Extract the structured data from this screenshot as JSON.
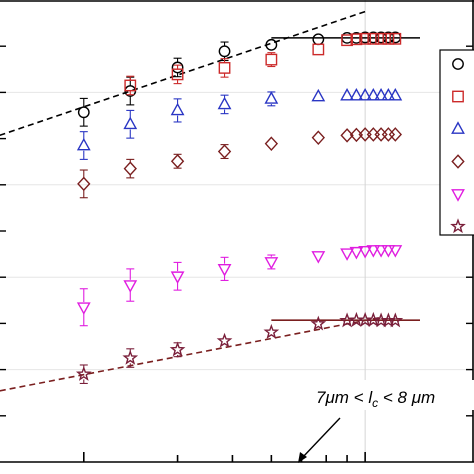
{
  "chart_data": {
    "type": "scatter",
    "title": "",
    "xlabel": "",
    "ylabel": "",
    "x_scale": "log",
    "xlim": [
      0.5,
      12.0
    ],
    "ylim": [
      0.0,
      1.0
    ],
    "grid": true,
    "legend": {
      "position": "top-right",
      "entries_visible": 5
    },
    "annotation": {
      "prefix": "7",
      "unit_mu": "μ",
      "unit_m": "m < ",
      "var_l": "l",
      "var_c": "c",
      "suffix": " < 8 ",
      "unit2": "μm"
    },
    "series": [
      {
        "marker": "circle",
        "color": "#000000",
        "points": [
          {
            "x": 1.0,
            "y": 0.757,
            "err": 0.03
          },
          {
            "x": 1.41,
            "y": 0.803,
            "err": 0.03
          },
          {
            "x": 2.0,
            "y": 0.854,
            "err": 0.02
          },
          {
            "x": 2.83,
            "y": 0.889,
            "err": 0.02
          },
          {
            "x": 4.0,
            "y": 0.903,
            "err": 0.01
          },
          {
            "x": 5.66,
            "y": 0.915,
            "err": 0.01
          },
          {
            "x": 7.0,
            "y": 0.918,
            "err": 0.005
          },
          {
            "x": 7.5,
            "y": 0.918,
            "err": 0.005
          },
          {
            "x": 8.0,
            "y": 0.919,
            "err": 0.005
          },
          {
            "x": 8.5,
            "y": 0.919,
            "err": 0.005
          },
          {
            "x": 9.0,
            "y": 0.919,
            "err": 0.005
          },
          {
            "x": 9.5,
            "y": 0.919,
            "err": 0.005
          },
          {
            "x": 10.0,
            "y": 0.919,
            "err": 0.005
          }
        ]
      },
      {
        "marker": "square",
        "color": "#cc2a2a",
        "points": [
          {
            "x": 1.41,
            "y": 0.815,
            "err": 0.02
          },
          {
            "x": 2.0,
            "y": 0.839,
            "err": 0.02
          },
          {
            "x": 2.83,
            "y": 0.853,
            "err": 0.02
          },
          {
            "x": 4.0,
            "y": 0.871,
            "err": 0.015
          },
          {
            "x": 5.66,
            "y": 0.893,
            "err": 0.01
          },
          {
            "x": 7.0,
            "y": 0.913,
            "err": 0.005
          },
          {
            "x": 7.5,
            "y": 0.915,
            "err": 0.005
          },
          {
            "x": 8.0,
            "y": 0.916,
            "err": 0.005
          },
          {
            "x": 8.5,
            "y": 0.916,
            "err": 0.005
          },
          {
            "x": 9.0,
            "y": 0.916,
            "err": 0.005
          },
          {
            "x": 9.5,
            "y": 0.916,
            "err": 0.005
          },
          {
            "x": 10.0,
            "y": 0.916,
            "err": 0.005
          }
        ]
      },
      {
        "marker": "triangle-up",
        "color": "#2a36c4",
        "points": [
          {
            "x": 1.0,
            "y": 0.685,
            "err": 0.03
          },
          {
            "x": 1.41,
            "y": 0.731,
            "err": 0.03
          },
          {
            "x": 2.0,
            "y": 0.761,
            "err": 0.025
          },
          {
            "x": 2.83,
            "y": 0.774,
            "err": 0.02
          },
          {
            "x": 4.0,
            "y": 0.786,
            "err": 0.015
          },
          {
            "x": 5.66,
            "y": 0.791,
            "err": 0.01
          },
          {
            "x": 7.0,
            "y": 0.793,
            "err": 0.005
          },
          {
            "x": 7.5,
            "y": 0.793,
            "err": 0.005
          },
          {
            "x": 8.0,
            "y": 0.793,
            "err": 0.005
          },
          {
            "x": 8.5,
            "y": 0.793,
            "err": 0.005
          },
          {
            "x": 9.0,
            "y": 0.793,
            "err": 0.005
          },
          {
            "x": 9.5,
            "y": 0.793,
            "err": 0.005
          },
          {
            "x": 10.0,
            "y": 0.793,
            "err": 0.005
          }
        ]
      },
      {
        "marker": "diamond",
        "color": "#7a1f1f",
        "points": [
          {
            "x": 1.0,
            "y": 0.602,
            "err": 0.03
          },
          {
            "x": 1.41,
            "y": 0.635,
            "err": 0.02
          },
          {
            "x": 2.0,
            "y": 0.651,
            "err": 0.015
          },
          {
            "x": 2.83,
            "y": 0.672,
            "err": 0.015
          },
          {
            "x": 4.0,
            "y": 0.689,
            "err": 0.01
          },
          {
            "x": 5.66,
            "y": 0.702,
            "err": 0.01
          },
          {
            "x": 7.0,
            "y": 0.707,
            "err": 0.005
          },
          {
            "x": 7.5,
            "y": 0.708,
            "err": 0.005
          },
          {
            "x": 8.0,
            "y": 0.709,
            "err": 0.005
          },
          {
            "x": 8.5,
            "y": 0.709,
            "err": 0.005
          },
          {
            "x": 9.0,
            "y": 0.709,
            "err": 0.005
          },
          {
            "x": 9.5,
            "y": 0.709,
            "err": 0.005
          },
          {
            "x": 10.0,
            "y": 0.709,
            "err": 0.005
          }
        ]
      },
      {
        "marker": "triangle-down",
        "color": "#e01de0",
        "points": [
          {
            "x": 1.0,
            "y": 0.335,
            "err": 0.04
          },
          {
            "x": 1.41,
            "y": 0.383,
            "err": 0.035
          },
          {
            "x": 2.0,
            "y": 0.402,
            "err": 0.03
          },
          {
            "x": 2.83,
            "y": 0.418,
            "err": 0.025
          },
          {
            "x": 4.0,
            "y": 0.433,
            "err": 0.015
          },
          {
            "x": 5.66,
            "y": 0.446,
            "err": 0.01
          },
          {
            "x": 7.0,
            "y": 0.452,
            "err": 0.005
          },
          {
            "x": 7.5,
            "y": 0.455,
            "err": 0.005
          },
          {
            "x": 8.0,
            "y": 0.457,
            "err": 0.005
          },
          {
            "x": 8.5,
            "y": 0.459,
            "err": 0.005
          },
          {
            "x": 9.0,
            "y": 0.459,
            "err": 0.005
          },
          {
            "x": 9.5,
            "y": 0.459,
            "err": 0.005
          },
          {
            "x": 10.0,
            "y": 0.459,
            "err": 0.005
          }
        ]
      },
      {
        "marker": "star",
        "color": "#7a1f3a",
        "points": [
          {
            "x": 1.0,
            "y": 0.19,
            "err": 0.02
          },
          {
            "x": 1.41,
            "y": 0.225,
            "err": 0.02
          },
          {
            "x": 2.0,
            "y": 0.243,
            "err": 0.015
          },
          {
            "x": 2.83,
            "y": 0.262,
            "err": 0.01
          },
          {
            "x": 4.0,
            "y": 0.281,
            "err": 0.01
          },
          {
            "x": 5.66,
            "y": 0.299,
            "err": 0.005
          },
          {
            "x": 7.0,
            "y": 0.306,
            "err": 0.005
          },
          {
            "x": 7.5,
            "y": 0.307,
            "err": 0.005
          },
          {
            "x": 8.0,
            "y": 0.307,
            "err": 0.005
          },
          {
            "x": 8.5,
            "y": 0.307,
            "err": 0.005
          },
          {
            "x": 9.0,
            "y": 0.306,
            "err": 0.005
          },
          {
            "x": 9.5,
            "y": 0.306,
            "err": 0.005
          },
          {
            "x": 10.0,
            "y": 0.306,
            "err": 0.005
          }
        ]
      }
    ],
    "fit_lines": [
      {
        "style": "dashed",
        "color": "#000000",
        "from": [
          0.5,
          0.7
        ],
        "to": [
          8.0,
          0.975
        ]
      },
      {
        "style": "dashed",
        "color": "#7a1f1f",
        "from": [
          0.5,
          0.15
        ],
        "to": [
          9.0,
          0.313
        ]
      }
    ],
    "plateau_lines": [
      {
        "color": "#000000",
        "y": 0.918,
        "x_from": 4.0,
        "x_to": 12.0
      },
      {
        "color": "#7a1f1f",
        "y": 0.307,
        "x_from": 4.0,
        "x_to": 12.0
      }
    ],
    "reference_line_x": 8.0
  }
}
